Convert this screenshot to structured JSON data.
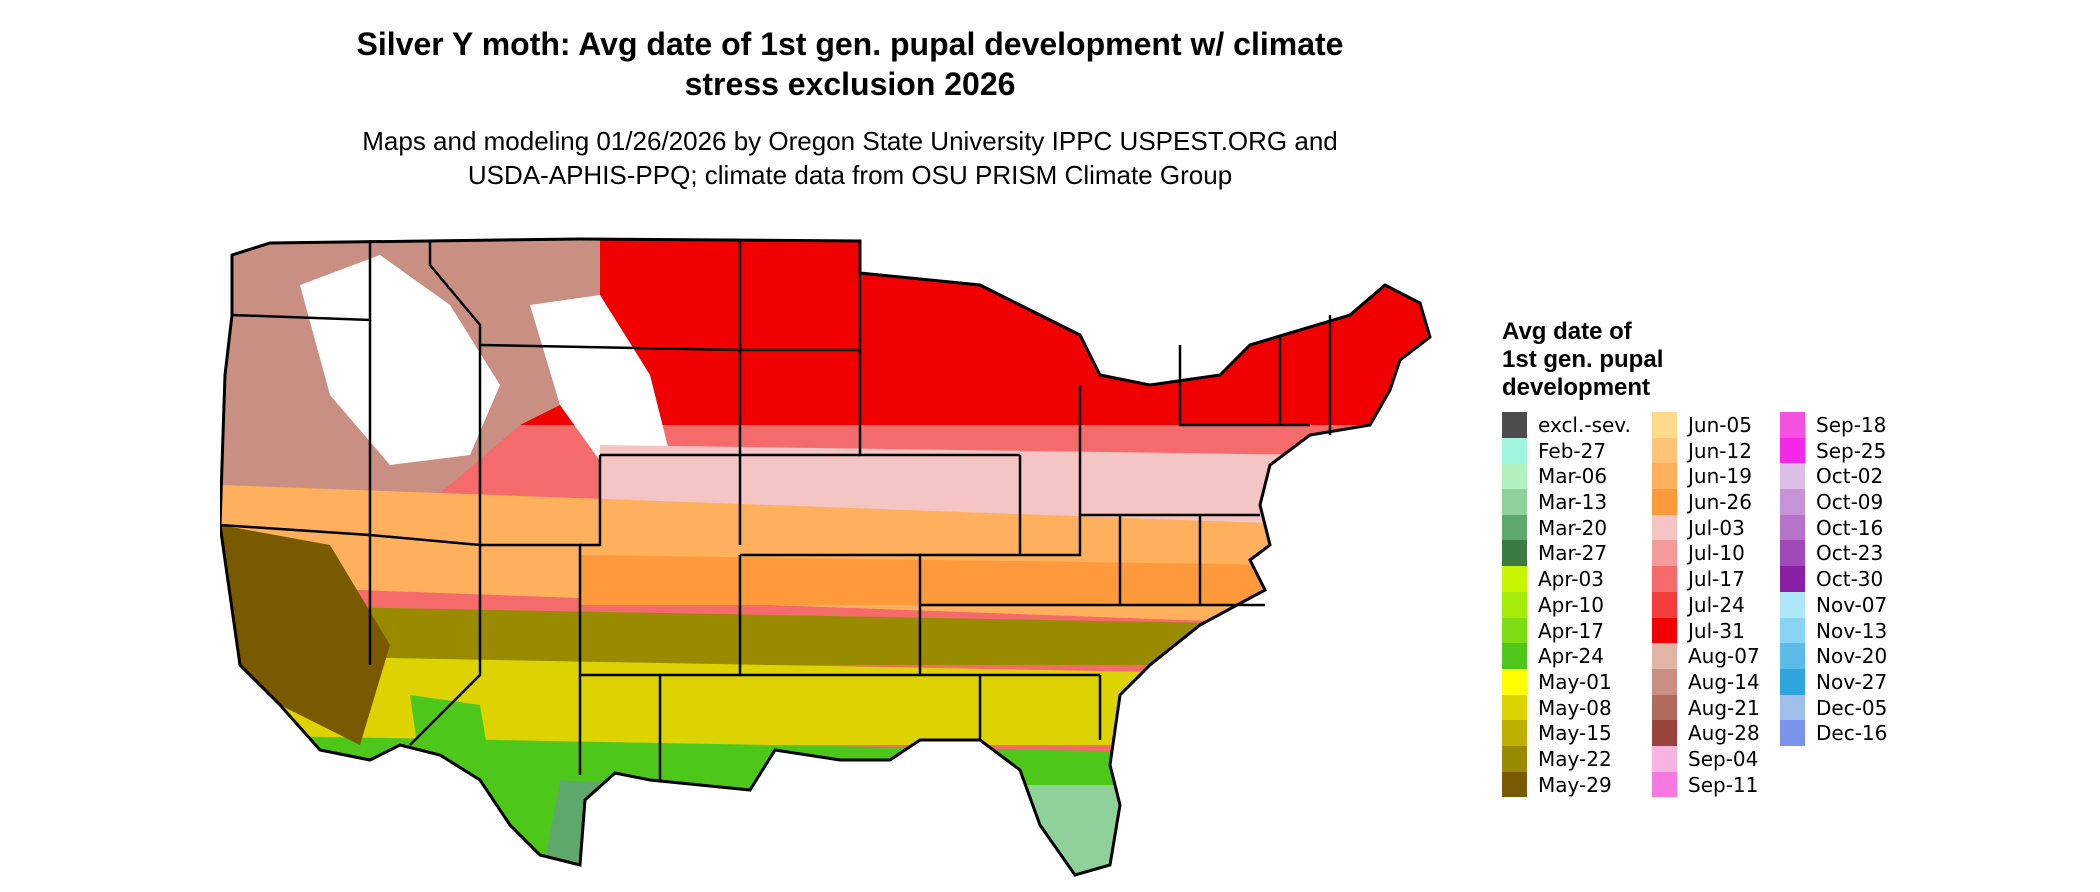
{
  "title": {
    "line1": "Silver Y moth: Avg date of 1st gen. pupal development w/ climate",
    "line2": "stress exclusion 2026"
  },
  "subtitle": {
    "line1": "Maps and modeling 01/26/2026 by Oregon State University IPPC USPEST.ORG and",
    "line2": "USDA-APHIS-PPQ; climate data from OSU PRISM Climate Group"
  },
  "legend": {
    "title_lines": [
      "Avg date of",
      "1st gen. pupal",
      "development"
    ],
    "columns": [
      [
        {
          "label": "excl.-sev.",
          "color": "#4d4d4d"
        },
        {
          "label": "Feb-27",
          "color": "#9ff5e0"
        },
        {
          "label": "Mar-06",
          "color": "#b3f0c0"
        },
        {
          "label": "Mar-13",
          "color": "#8fd19a"
        },
        {
          "label": "Mar-20",
          "color": "#5fa86b"
        },
        {
          "label": "Mar-27",
          "color": "#3b7a40"
        },
        {
          "label": "Apr-03",
          "color": "#c8f500"
        },
        {
          "label": "Apr-10",
          "color": "#a6ec0a"
        },
        {
          "label": "Apr-17",
          "color": "#7ddc14"
        },
        {
          "label": "Apr-24",
          "color": "#4dc81a"
        },
        {
          "label": "May-01",
          "color": "#ffff00"
        },
        {
          "label": "May-08",
          "color": "#dcd300"
        },
        {
          "label": "May-15",
          "color": "#bfb000"
        },
        {
          "label": "May-22",
          "color": "#9a8a00"
        },
        {
          "label": "May-29",
          "color": "#7a5a00"
        }
      ],
      [
        {
          "label": "Jun-05",
          "color": "#ffd98c"
        },
        {
          "label": "Jun-12",
          "color": "#ffc477"
        },
        {
          "label": "Jun-19",
          "color": "#ffb05c"
        },
        {
          "label": "Jun-26",
          "color": "#ff9a3c"
        },
        {
          "label": "Jul-03",
          "color": "#f5c4c4"
        },
        {
          "label": "Jul-10",
          "color": "#f59a9a"
        },
        {
          "label": "Jul-17",
          "color": "#f56a6a"
        },
        {
          "label": "Jul-24",
          "color": "#f53c3c"
        },
        {
          "label": "Jul-31",
          "color": "#f00000"
        },
        {
          "label": "Aug-07",
          "color": "#e2b4a6"
        },
        {
          "label": "Aug-14",
          "color": "#c98f82"
        },
        {
          "label": "Aug-21",
          "color": "#b06a5e"
        },
        {
          "label": "Aug-28",
          "color": "#98443a"
        },
        {
          "label": "Sep-04",
          "color": "#f8b4e0"
        },
        {
          "label": "Sep-11",
          "color": "#f77ae0"
        }
      ],
      [
        {
          "label": "Sep-18",
          "color": "#f550e0"
        },
        {
          "label": "Sep-25",
          "color": "#f528e8"
        },
        {
          "label": "Oct-02",
          "color": "#dcbfe6"
        },
        {
          "label": "Oct-09",
          "color": "#c893d6"
        },
        {
          "label": "Oct-16",
          "color": "#b473c8"
        },
        {
          "label": "Oct-23",
          "color": "#a04ab8"
        },
        {
          "label": "Oct-30",
          "color": "#8a1fa6"
        },
        {
          "label": "Nov-07",
          "color": "#aee8f8"
        },
        {
          "label": "Nov-13",
          "color": "#88d4f2"
        },
        {
          "label": "Nov-20",
          "color": "#5cbce8"
        },
        {
          "label": "Nov-27",
          "color": "#2ea6dc"
        },
        {
          "label": "Dec-05",
          "color": "#a0c0ea"
        },
        {
          "label": "Dec-16",
          "color": "#7a94ec"
        }
      ]
    ]
  }
}
